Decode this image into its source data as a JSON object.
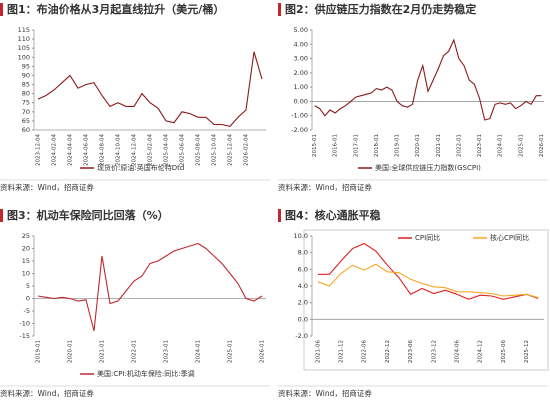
{
  "chart_data": [
    {
      "type": "line",
      "title": "图1：布油价格从3月起直线拉升（美元/桶）",
      "source": "资料来源：Wind，招商证券",
      "categories": [
        "2023-12-04",
        null,
        "2024-02-04",
        null,
        "2024-04-04",
        null,
        "2024-06-04",
        null,
        "2024-08-04",
        null,
        "2024-10-04",
        null,
        "2024-12-04",
        null,
        "2025-02-04",
        null,
        "2025-04-04",
        null,
        "2025-06-04",
        null,
        "2025-08-04",
        null,
        "2025-10-04",
        null,
        "2025-12-04",
        null,
        "2026-02-04",
        null,
        null
      ],
      "series": [
        {
          "name": "现货价:原油:英国布伦特Dtd",
          "color": "#8b1a1a",
          "values": [
            77,
            79,
            82,
            86,
            90,
            83,
            85,
            86,
            79,
            73,
            75,
            73,
            73,
            80,
            75,
            72,
            65,
            64,
            70,
            69,
            67,
            67,
            63,
            63,
            62,
            67,
            71,
            103,
            88
          ]
        }
      ],
      "ylim": [
        60,
        115
      ],
      "yticks": [
        60,
        65,
        70,
        75,
        80,
        85,
        90,
        95,
        100,
        105,
        110,
        115
      ],
      "legend": "bottom"
    },
    {
      "type": "line",
      "title": "图2：供应链压力指数在2月仍走势稳定",
      "source": "资料来源：Wind，招商证券",
      "categories": [
        "2015-01",
        null,
        null,
        null,
        "2016-01",
        null,
        null,
        null,
        "2017-01",
        null,
        null,
        null,
        "2018-01",
        null,
        null,
        null,
        "2019-01",
        null,
        null,
        null,
        "2020-01",
        null,
        null,
        null,
        "2021-01",
        null,
        null,
        null,
        "2022-01",
        null,
        null,
        null,
        "2023-01",
        null,
        null,
        null,
        "2024-01",
        null,
        null,
        null,
        "2025-01",
        null,
        null,
        null,
        "2026-01"
      ],
      "series": [
        {
          "name": "美国:全球供应链压力指数(GSCPI)",
          "color": "#8b1a1a",
          "values": [
            -0.3,
            -0.5,
            -1.0,
            -0.6,
            -0.8,
            -0.5,
            -0.3,
            0.0,
            0.3,
            0.4,
            0.5,
            0.6,
            0.9,
            0.8,
            1.0,
            0.8,
            0.0,
            -0.3,
            -0.4,
            -0.2,
            1.5,
            2.5,
            0.7,
            1.5,
            2.3,
            3.2,
            3.5,
            4.3,
            3.0,
            2.5,
            1.5,
            1.2,
            0.2,
            -1.3,
            -1.2,
            -0.2,
            -0.1,
            -0.2,
            -0.1,
            -0.5,
            -0.3,
            0.0,
            -0.2,
            0.4,
            0.4
          ]
        }
      ],
      "ylim": [
        -2,
        5
      ],
      "yticks": [
        {
          "value": -2,
          "label": "-2.00"
        },
        {
          "value": -1,
          "label": "-1.00"
        },
        {
          "value": 0,
          "label": "0.00"
        },
        {
          "value": 1,
          "label": "1.00"
        },
        {
          "value": 2,
          "label": "2.00"
        },
        {
          "value": 3,
          "label": "3.00"
        },
        {
          "value": 4,
          "label": "4.00"
        },
        {
          "value": 5,
          "label": "5.00"
        }
      ],
      "legend": "bottom"
    },
    {
      "type": "line",
      "title": "图3：机动车保险同比回落（%）",
      "source": "资料来源：Wind，招商证券",
      "categories": [
        "2019-01",
        null,
        null,
        null,
        "2020-01",
        null,
        null,
        null,
        "2021-01",
        null,
        null,
        null,
        "2022-01",
        null,
        null,
        null,
        "2023-01",
        null,
        null,
        null,
        "2024-01",
        null,
        null,
        null,
        "2025-01",
        null,
        null,
        null,
        "2026-01"
      ],
      "series": [
        {
          "name": "美国:CPI:机动车保险:同比:季调",
          "color": "#c0282d",
          "values": [
            1,
            0.5,
            0,
            0.5,
            0,
            -1,
            -0.5,
            -13,
            17,
            -2,
            -1,
            3,
            7,
            9,
            14,
            15,
            17,
            19,
            20,
            21,
            22,
            20,
            17,
            14,
            10,
            6,
            0,
            -1,
            1
          ]
        }
      ],
      "ylim": [
        -15,
        25
      ],
      "yticks": [
        -15,
        -10,
        -5,
        0,
        5,
        10,
        15,
        20,
        25
      ],
      "legend": "bottom"
    },
    {
      "type": "line",
      "title": "图4：核心通胀平稳",
      "source": "资料来源：Wind，招商证券",
      "categories": [
        "2021-06",
        null,
        "2021-12",
        null,
        "2022-06",
        null,
        "2022-12",
        null,
        "2023-06",
        null,
        "2023-12",
        null,
        "2024-06",
        null,
        "2024-12",
        null,
        "2025-06",
        null,
        "2025-12",
        null
      ],
      "series": [
        {
          "name": "CPI同比",
          "color": "#e02020",
          "values": [
            5.4,
            5.4,
            7.0,
            8.5,
            9.1,
            8.2,
            6.5,
            5.0,
            3.0,
            3.7,
            3.1,
            3.5,
            3.0,
            2.4,
            2.9,
            2.8,
            2.4,
            2.7,
            3.0,
            2.5
          ]
        },
        {
          "name": "核心CPI同比",
          "color": "#f5a623",
          "values": [
            4.5,
            4.0,
            5.5,
            6.5,
            5.9,
            6.6,
            5.7,
            5.6,
            4.8,
            4.3,
            3.9,
            3.8,
            3.3,
            3.3,
            3.2,
            3.1,
            2.8,
            2.9,
            3.0,
            2.6
          ]
        }
      ],
      "ylim": [
        -2,
        10
      ],
      "yticks": [
        {
          "value": -2,
          "label": "-2.0"
        },
        {
          "value": 0,
          "label": "0.0"
        },
        {
          "value": 2,
          "label": "2.0"
        },
        {
          "value": 4,
          "label": "4.0"
        },
        {
          "value": 6,
          "label": "6.0"
        },
        {
          "value": 8,
          "label": "8.0"
        },
        {
          "value": 10,
          "label": "10.0"
        }
      ],
      "legend": "top"
    }
  ]
}
